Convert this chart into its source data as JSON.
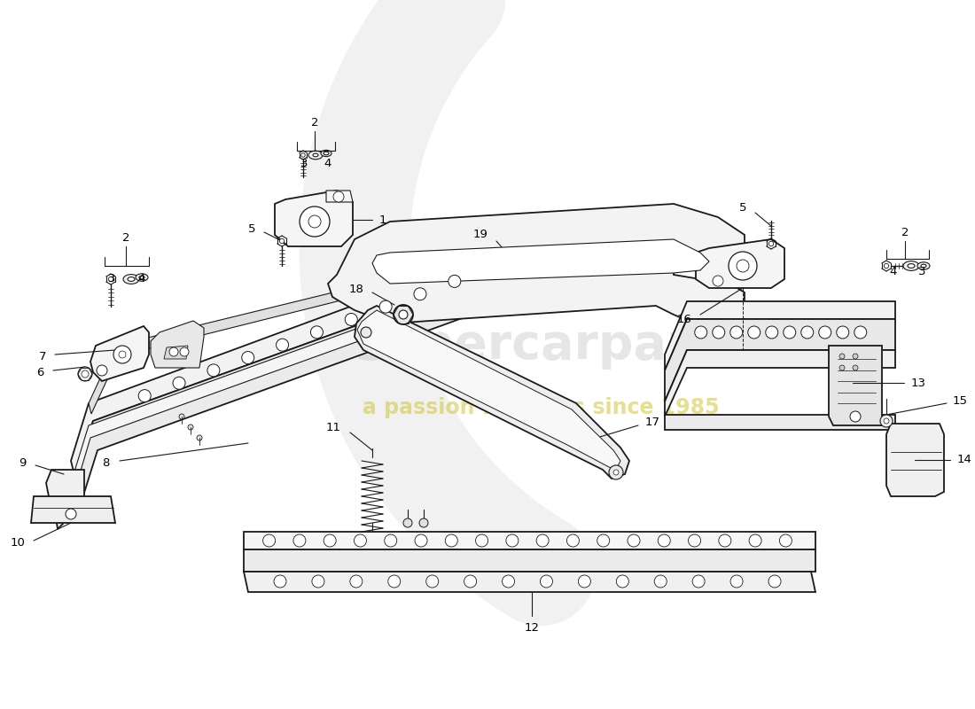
{
  "bg": "#ffffff",
  "lc": "#1a1a1a",
  "wm1": "#c8c8c8",
  "wm2": "#ccc020",
  "fw": 11.0,
  "fh": 8.0,
  "dpi": 100
}
